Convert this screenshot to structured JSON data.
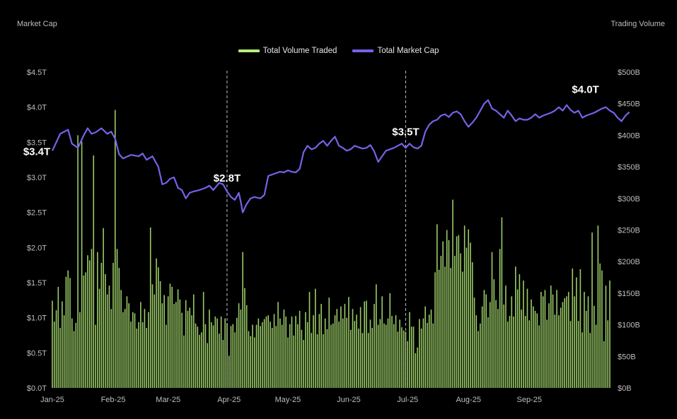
{
  "chart_data": {
    "type": "bar+line",
    "left_axis_title": "Market Cap",
    "right_axis_title": "Trading Volume",
    "legend": [
      {
        "label": "Total Volume Traded",
        "color": "#b5ef79"
      },
      {
        "label": "Total Market Cap",
        "color": "#7463e8"
      }
    ],
    "x_tick_labels": [
      "Jan-25",
      "Feb-25",
      "Mar-25",
      "Apr-25",
      "May-25",
      "Jun-25",
      "Jul-25",
      "Aug-25",
      "Sep-25"
    ],
    "left_ticks": [
      "$0.0T",
      "$0.5T",
      "$1.0T",
      "$1.5T",
      "$2.0T",
      "$2.5T",
      "$3.0T",
      "$3.5T",
      "$4.0T",
      "$4.5T"
    ],
    "right_ticks": [
      "$0B",
      "$50B",
      "$100B",
      "$150B",
      "$200B",
      "$250B",
      "$300B",
      "$350B",
      "$400B",
      "$450B",
      "$500B"
    ],
    "left_ylim": [
      0,
      4.5
    ],
    "right_ylim": [
      0,
      500
    ],
    "vlines": [
      {
        "label": "Apr-25",
        "day": 89
      },
      {
        "label": "Jul-25",
        "day": 180
      }
    ],
    "annotations": [
      {
        "text": "$3.4T",
        "day": 0,
        "value": 3.4
      },
      {
        "text": "$2.8T",
        "day": 89,
        "value": 2.8
      },
      {
        "text": "$3.5T",
        "day": 180,
        "value": 3.5
      },
      {
        "text": "$4.0T",
        "day": 268,
        "value": 4.0
      }
    ],
    "market_cap_series": {
      "name": "Total Market Cap",
      "unit": "trillion USD",
      "points": [
        [
          0,
          3.38
        ],
        [
          4,
          3.62
        ],
        [
          8,
          3.68
        ],
        [
          10,
          3.48
        ],
        [
          13,
          3.42
        ],
        [
          16,
          3.6
        ],
        [
          18,
          3.7
        ],
        [
          20,
          3.62
        ],
        [
          22,
          3.64
        ],
        [
          25,
          3.7
        ],
        [
          28,
          3.62
        ],
        [
          30,
          3.65
        ],
        [
          32,
          3.55
        ],
        [
          34,
          3.33
        ],
        [
          36,
          3.27
        ],
        [
          40,
          3.32
        ],
        [
          44,
          3.3
        ],
        [
          46,
          3.34
        ],
        [
          48,
          3.25
        ],
        [
          51,
          3.3
        ],
        [
          54,
          3.15
        ],
        [
          56,
          2.9
        ],
        [
          58,
          2.92
        ],
        [
          60,
          2.98
        ],
        [
          62,
          3.0
        ],
        [
          64,
          2.85
        ],
        [
          66,
          2.82
        ],
        [
          68,
          2.7
        ],
        [
          70,
          2.78
        ],
        [
          72,
          2.8
        ],
        [
          75,
          2.82
        ],
        [
          78,
          2.85
        ],
        [
          80,
          2.88
        ],
        [
          82,
          2.82
        ],
        [
          85,
          2.92
        ],
        [
          87,
          2.9
        ],
        [
          89,
          2.8
        ],
        [
          91,
          2.72
        ],
        [
          93,
          2.68
        ],
        [
          95,
          2.78
        ],
        [
          96,
          2.65
        ],
        [
          97,
          2.5
        ],
        [
          99,
          2.62
        ],
        [
          101,
          2.7
        ],
        [
          103,
          2.72
        ],
        [
          106,
          2.7
        ],
        [
          108,
          2.75
        ],
        [
          110,
          3.02
        ],
        [
          113,
          3.05
        ],
        [
          116,
          3.08
        ],
        [
          118,
          3.07
        ],
        [
          120,
          3.1
        ],
        [
          122,
          3.08
        ],
        [
          124,
          3.07
        ],
        [
          126,
          3.12
        ],
        [
          128,
          3.36
        ],
        [
          130,
          3.45
        ],
        [
          132,
          3.4
        ],
        [
          134,
          3.42
        ],
        [
          136,
          3.48
        ],
        [
          138,
          3.52
        ],
        [
          140,
          3.45
        ],
        [
          142,
          3.52
        ],
        [
          144,
          3.58
        ],
        [
          146,
          3.45
        ],
        [
          148,
          3.42
        ],
        [
          150,
          3.38
        ],
        [
          152,
          3.4
        ],
        [
          154,
          3.45
        ],
        [
          156,
          3.43
        ],
        [
          158,
          3.41
        ],
        [
          160,
          3.42
        ],
        [
          162,
          3.46
        ],
        [
          164,
          3.37
        ],
        [
          166,
          3.22
        ],
        [
          168,
          3.3
        ],
        [
          170,
          3.38
        ],
        [
          172,
          3.4
        ],
        [
          174,
          3.42
        ],
        [
          176,
          3.45
        ],
        [
          178,
          3.48
        ],
        [
          180,
          3.42
        ],
        [
          182,
          3.48
        ],
        [
          184,
          3.43
        ],
        [
          186,
          3.41
        ],
        [
          188,
          3.45
        ],
        [
          190,
          3.65
        ],
        [
          192,
          3.75
        ],
        [
          194,
          3.8
        ],
        [
          196,
          3.82
        ],
        [
          198,
          3.88
        ],
        [
          200,
          3.9
        ],
        [
          202,
          3.86
        ],
        [
          204,
          3.92
        ],
        [
          206,
          3.94
        ],
        [
          208,
          3.9
        ],
        [
          210,
          3.8
        ],
        [
          212,
          3.72
        ],
        [
          214,
          3.78
        ],
        [
          216,
          3.85
        ],
        [
          218,
          3.95
        ],
        [
          220,
          4.05
        ],
        [
          222,
          4.1
        ],
        [
          224,
          3.98
        ],
        [
          226,
          3.95
        ],
        [
          228,
          3.9
        ],
        [
          230,
          3.85
        ],
        [
          232,
          3.95
        ],
        [
          234,
          3.88
        ],
        [
          236,
          3.8
        ],
        [
          238,
          3.84
        ],
        [
          240,
          3.82
        ],
        [
          242,
          3.82
        ],
        [
          244,
          3.85
        ],
        [
          246,
          3.9
        ],
        [
          248,
          3.85
        ],
        [
          250,
          3.88
        ],
        [
          252,
          3.9
        ],
        [
          254,
          3.92
        ],
        [
          256,
          3.95
        ],
        [
          258,
          4.0
        ],
        [
          260,
          3.95
        ],
        [
          262,
          4.03
        ],
        [
          264,
          3.96
        ],
        [
          266,
          3.92
        ],
        [
          268,
          3.95
        ],
        [
          270,
          3.85
        ],
        [
          272,
          3.88
        ],
        [
          274,
          3.9
        ],
        [
          276,
          3.92
        ],
        [
          278,
          3.95
        ],
        [
          280,
          3.98
        ],
        [
          282,
          4.0
        ],
        [
          284,
          3.95
        ],
        [
          286,
          3.92
        ],
        [
          288,
          3.85
        ],
        [
          290,
          3.8
        ],
        [
          292,
          3.88
        ],
        [
          294,
          3.93
        ]
      ]
    },
    "volume_series": {
      "name": "Total Volume Traded",
      "unit": "billion USD",
      "values": [
        138,
        105,
        123,
        160,
        95,
        137,
        115,
        176,
        186,
        174,
        110,
        90,
        103,
        400,
        120,
        390,
        178,
        183,
        210,
        202,
        220,
        368,
        100,
        215,
        157,
        198,
        253,
        180,
        148,
        162,
        125,
        198,
        440,
        220,
        190,
        155,
        120,
        125,
        145,
        134,
        105,
        120,
        118,
        94,
        104,
        136,
        104,
        125,
        95,
        120,
        254,
        164,
        148,
        205,
        191,
        169,
        134,
        147,
        100,
        145,
        165,
        160,
        133,
        136,
        156,
        140,
        119,
        83,
        139,
        122,
        127,
        115,
        148,
        102,
        97,
        84,
        88,
        152,
        101,
        71,
        124,
        104,
        99,
        113,
        110,
        86,
        113,
        76,
        110,
        102,
        51,
        98,
        101,
        88,
        111,
        134,
        124,
        215,
        158,
        131,
        90,
        82,
        100,
        80,
        100,
        110,
        98,
        104,
        109,
        113,
        115,
        105,
        95,
        117,
        98,
        136,
        110,
        100,
        124,
        113,
        80,
        101,
        113,
        83,
        114,
        101,
        122,
        92,
        76,
        120,
        104,
        152,
        87,
        115,
        157,
        85,
        117,
        133,
        85,
        110,
        93,
        143,
        100,
        102,
        115,
        125,
        105,
        129,
        110,
        133,
        111,
        144,
        92,
        125,
        106,
        116,
        94,
        128,
        87,
        137,
        138,
        87,
        108,
        95,
        133,
        164,
        100,
        109,
        145,
        102,
        100,
        110,
        150,
        114,
        101,
        115,
        89,
        108,
        96,
        91,
        89,
        74,
        120,
        97,
        97,
        55,
        64,
        109,
        94,
        110,
        129,
        103,
        116,
        124,
        102,
        183,
        259,
        187,
        209,
        232,
        192,
        250,
        234,
        190,
        298,
        209,
        240,
        242,
        213,
        184,
        257,
        222,
        251,
        230,
        199,
        143,
        115,
        90,
        102,
        129,
        155,
        148,
        112,
        136,
        215,
        172,
        139,
        125,
        220,
        270,
        132,
        162,
        105,
        114,
        145,
        113,
        192,
        156,
        180,
        124,
        170,
        114,
        157,
        107,
        140,
        129,
        122,
        118,
        99,
        152,
        145,
        155,
        108,
        134,
        162,
        148,
        116,
        155,
        115,
        127,
        136,
        142,
        145,
        152,
        106,
        189,
        145,
        175,
        106,
        188,
        88,
        152,
        122,
        145,
        87,
        246,
        130,
        100,
        257,
        197,
        186,
        74,
        162,
        107,
        170
      ]
    }
  }
}
